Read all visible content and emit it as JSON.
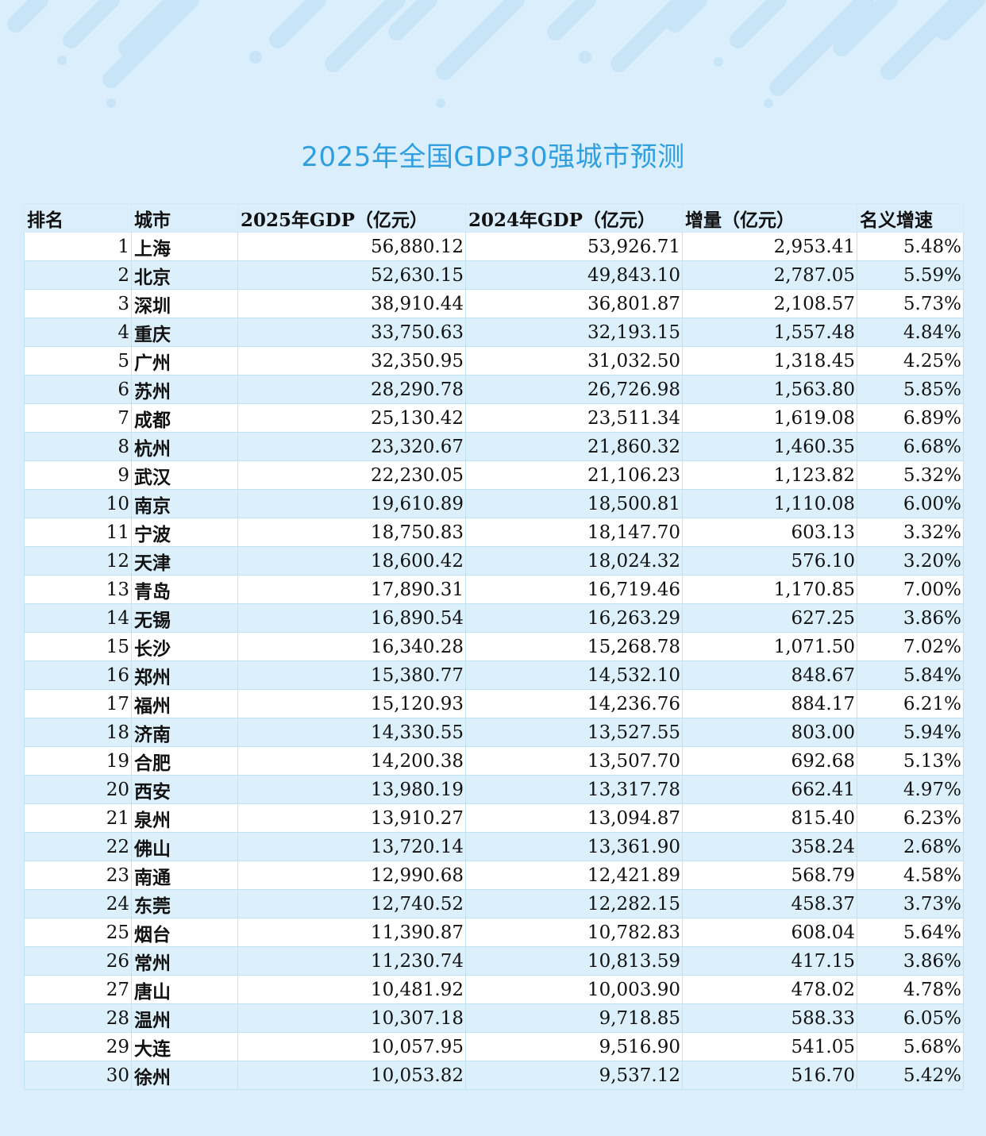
{
  "title": "2025年全国GDP30强城市预测",
  "colors": {
    "background": "#daeefc",
    "title": "#2f9fe0",
    "row_alt": "#dcf0fc",
    "grid": "#bfe3f5"
  },
  "table": {
    "columns": [
      "排名",
      "城市",
      "2025年GDP（亿元）",
      "2024年GDP（亿元）",
      "增量（亿元）",
      "名义增速"
    ],
    "rows": [
      [
        "1",
        "上海",
        "56,880.12",
        "53,926.71",
        "2,953.41",
        "5.48%"
      ],
      [
        "2",
        "北京",
        "52,630.15",
        "49,843.10",
        "2,787.05",
        "5.59%"
      ],
      [
        "3",
        "深圳",
        "38,910.44",
        "36,801.87",
        "2,108.57",
        "5.73%"
      ],
      [
        "4",
        "重庆",
        "33,750.63",
        "32,193.15",
        "1,557.48",
        "4.84%"
      ],
      [
        "5",
        "广州",
        "32,350.95",
        "31,032.50",
        "1,318.45",
        "4.25%"
      ],
      [
        "6",
        "苏州",
        "28,290.78",
        "26,726.98",
        "1,563.80",
        "5.85%"
      ],
      [
        "7",
        "成都",
        "25,130.42",
        "23,511.34",
        "1,619.08",
        "6.89%"
      ],
      [
        "8",
        "杭州",
        "23,320.67",
        "21,860.32",
        "1,460.35",
        "6.68%"
      ],
      [
        "9",
        "武汉",
        "22,230.05",
        "21,106.23",
        "1,123.82",
        "5.32%"
      ],
      [
        "10",
        "南京",
        "19,610.89",
        "18,500.81",
        "1,110.08",
        "6.00%"
      ],
      [
        "11",
        "宁波",
        "18,750.83",
        "18,147.70",
        "603.13",
        "3.32%"
      ],
      [
        "12",
        "天津",
        "18,600.42",
        "18,024.32",
        "576.10",
        "3.20%"
      ],
      [
        "13",
        "青岛",
        "17,890.31",
        "16,719.46",
        "1,170.85",
        "7.00%"
      ],
      [
        "14",
        "无锡",
        "16,890.54",
        "16,263.29",
        "627.25",
        "3.86%"
      ],
      [
        "15",
        "长沙",
        "16,340.28",
        "15,268.78",
        "1,071.50",
        "7.02%"
      ],
      [
        "16",
        "郑州",
        "15,380.77",
        "14,532.10",
        "848.67",
        "5.84%"
      ],
      [
        "17",
        "福州",
        "15,120.93",
        "14,236.76",
        "884.17",
        "6.21%"
      ],
      [
        "18",
        "济南",
        "14,330.55",
        "13,527.55",
        "803.00",
        "5.94%"
      ],
      [
        "19",
        "合肥",
        "14,200.38",
        "13,507.70",
        "692.68",
        "5.13%"
      ],
      [
        "20",
        "西安",
        "13,980.19",
        "13,317.78",
        "662.41",
        "4.97%"
      ],
      [
        "21",
        "泉州",
        "13,910.27",
        "13,094.87",
        "815.40",
        "6.23%"
      ],
      [
        "22",
        "佛山",
        "13,720.14",
        "13,361.90",
        "358.24",
        "2.68%"
      ],
      [
        "23",
        "南通",
        "12,990.68",
        "12,421.89",
        "568.79",
        "4.58%"
      ],
      [
        "24",
        "东莞",
        "12,740.52",
        "12,282.15",
        "458.37",
        "3.73%"
      ],
      [
        "25",
        "烟台",
        "11,390.87",
        "10,782.83",
        "608.04",
        "5.64%"
      ],
      [
        "26",
        "常州",
        "11,230.74",
        "10,813.59",
        "417.15",
        "3.86%"
      ],
      [
        "27",
        "唐山",
        "10,481.92",
        "10,003.90",
        "478.02",
        "4.78%"
      ],
      [
        "28",
        "温州",
        "10,307.18",
        "9,718.85",
        "588.33",
        "6.05%"
      ],
      [
        "29",
        "大连",
        "10,057.95",
        "9,516.90",
        "541.05",
        "5.68%"
      ],
      [
        "30",
        "徐州",
        "10,053.82",
        "9,537.12",
        "516.70",
        "5.42%"
      ]
    ]
  }
}
